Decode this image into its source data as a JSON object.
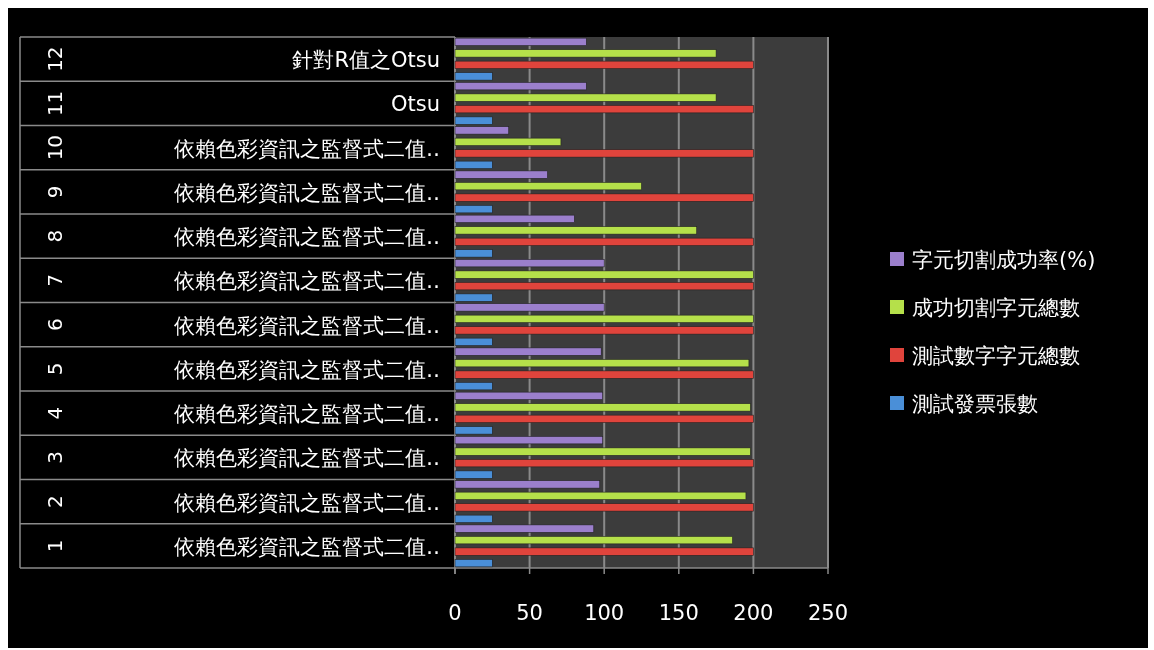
{
  "chart_data": {
    "type": "bar",
    "orientation": "horizontal",
    "categories": [
      "針對R值之Otsu",
      "Otsu",
      "依賴色彩資訊之監督式二值‥",
      "依賴色彩資訊之監督式二值‥",
      "依賴色彩資訊之監督式二值‥",
      "依賴色彩資訊之監督式二值‥",
      "依賴色彩資訊之監督式二值‥",
      "依賴色彩資訊之監督式二值‥",
      "依賴色彩資訊之監督式二值‥",
      "依賴色彩資訊之監督式二值‥",
      "依賴色彩資訊之監督式二值‥",
      "依賴色彩資訊之監督式二值‥"
    ],
    "annotations": [
      "12",
      "11",
      "10",
      "9",
      "8",
      "7",
      "6",
      "5",
      "4",
      "3",
      "2",
      "1"
    ],
    "series": [
      {
        "name": "字元切割成功率(%)",
        "color": "#9b7fcc",
        "values": [
          88,
          88,
          36,
          62,
          80,
          100,
          100,
          98,
          99,
          99,
          97,
          93
        ]
      },
      {
        "name": "成功切割字元總數",
        "color": "#b5e04a",
        "values": [
          175,
          175,
          71,
          125,
          162,
          200,
          200,
          197,
          198,
          198,
          195,
          186
        ]
      },
      {
        "name": "測試數字字元總數",
        "color": "#e0443c",
        "values": [
          200,
          200,
          200,
          200,
          200,
          200,
          200,
          200,
          200,
          200,
          200,
          200
        ]
      },
      {
        "name": "測試發票張數",
        "color": "#4a8fd8",
        "values": [
          25,
          25,
          25,
          25,
          25,
          25,
          25,
          25,
          25,
          25,
          25,
          25
        ]
      }
    ],
    "xlim": [
      0,
      250
    ],
    "xticks": [
      0,
      50,
      100,
      150,
      200,
      250
    ],
    "grid": "x",
    "legend": "right"
  }
}
